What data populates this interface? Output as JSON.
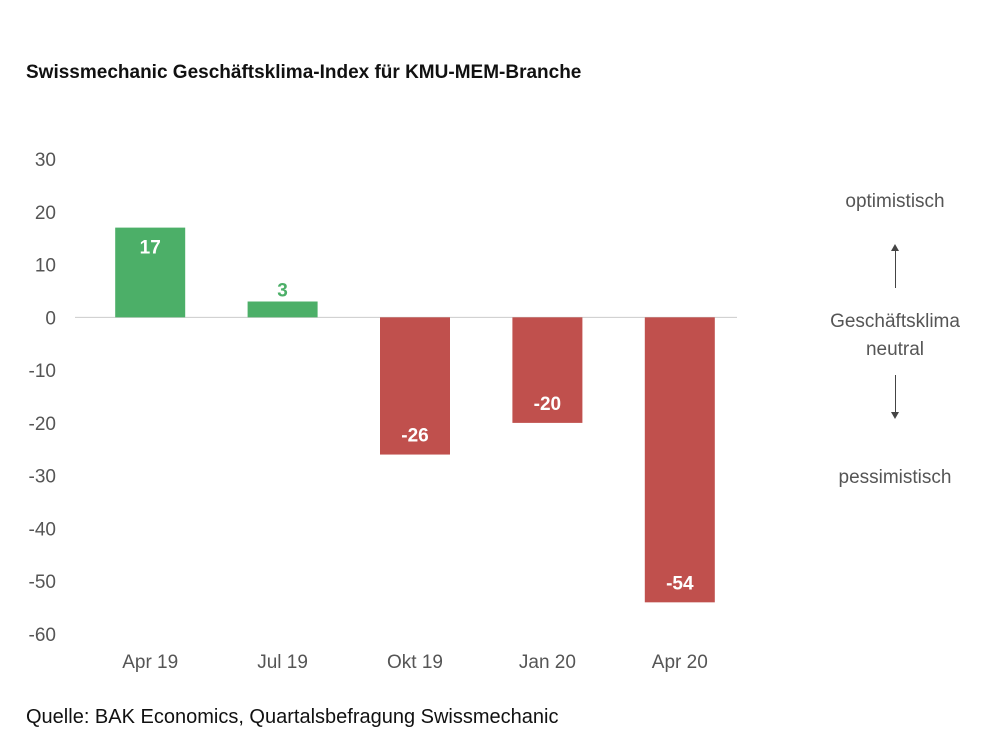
{
  "chart_data": {
    "type": "bar",
    "title": "Swissmechanic Geschäftsklima-Index für KMU-MEM-Branche",
    "categories": [
      "Apr 19",
      "Jul 19",
      "Okt 19",
      "Jan 20",
      "Apr 20"
    ],
    "values": [
      17,
      3,
      -26,
      -20,
      -54
    ],
    "data_labels": [
      "17",
      "3",
      "-26",
      "-20",
      "-54"
    ],
    "yticks": [
      30,
      20,
      10,
      0,
      -10,
      -20,
      -30,
      -40,
      -50,
      -60
    ],
    "ylim": [
      -60,
      30
    ],
    "xlabel": "",
    "ylabel": "",
    "grid": false,
    "colors": {
      "positive": "#4CAF68",
      "negative": "#C0504D",
      "zero_line": "#CCCCCC"
    }
  },
  "annotations": {
    "optimistic": "optimistisch",
    "neutral_line1": "Geschäftsklima",
    "neutral_line2": "neutral",
    "pessimistic": "pessimistisch"
  },
  "source": "Quelle: BAK Economics, Quartalsbefragung Swissmechanic"
}
